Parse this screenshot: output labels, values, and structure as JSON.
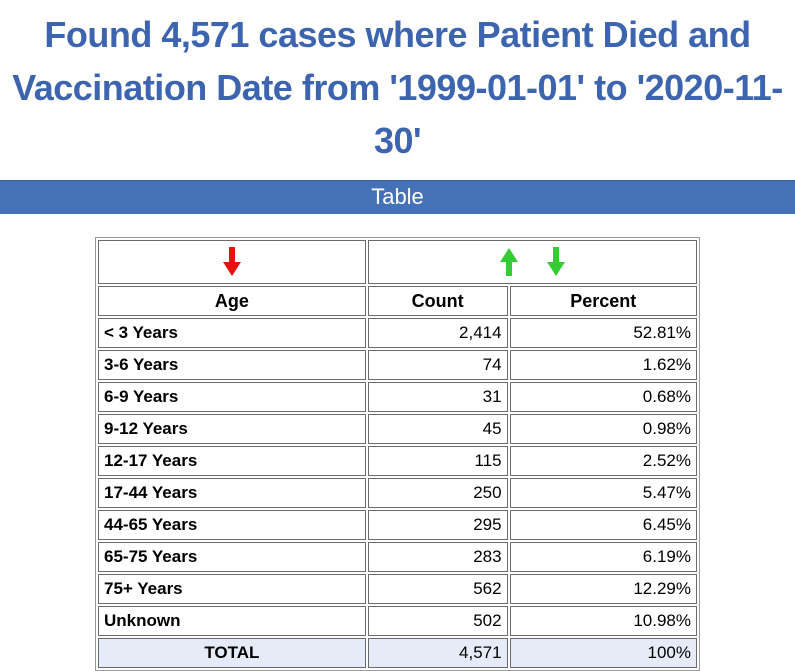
{
  "title": {
    "text": "Found 4,571 cases where Patient Died and Vaccination Date from '1999-01-01' to '2020-11-30'"
  },
  "section": {
    "label": "Table"
  },
  "table": {
    "columns": [
      "Age",
      "Count",
      "Percent"
    ],
    "sort_controls": {
      "age_column_icon": "red-down-arrow",
      "value_column_icons": [
        "green-up-arrow",
        "green-down-arrow"
      ]
    },
    "rows": [
      {
        "age": "< 3 Years",
        "count": "2,414",
        "percent": "52.81%"
      },
      {
        "age": "3-6 Years",
        "count": "74",
        "percent": "1.62%"
      },
      {
        "age": "6-9 Years",
        "count": "31",
        "percent": "0.68%"
      },
      {
        "age": "9-12 Years",
        "count": "45",
        "percent": "0.98%"
      },
      {
        "age": "12-17 Years",
        "count": "115",
        "percent": "2.52%"
      },
      {
        "age": "17-44 Years",
        "count": "250",
        "percent": "5.47%"
      },
      {
        "age": "44-65 Years",
        "count": "295",
        "percent": "6.45%"
      },
      {
        "age": "65-75 Years",
        "count": "283",
        "percent": "6.19%"
      },
      {
        "age": "75+ Years",
        "count": "562",
        "percent": "12.29%"
      },
      {
        "age": "Unknown",
        "count": "502",
        "percent": "10.98%"
      }
    ],
    "total": {
      "label": "TOTAL",
      "count": "4,571",
      "percent": "100%"
    }
  },
  "colors": {
    "title_blue": "#3c64af",
    "bar_blue": "#4471b8",
    "total_row_bg": "#e5ebf7",
    "arrow_red": "#ea1010",
    "arrow_green": "#33cc33",
    "cell_border": "#6b6b6b"
  }
}
